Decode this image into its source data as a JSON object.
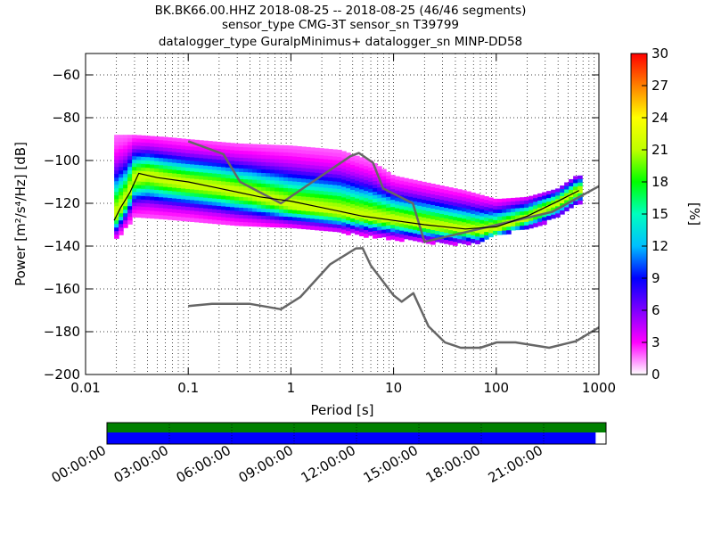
{
  "title": {
    "line1": "BK.BK66.00.HHZ   2018-08-25 -- 2018-08-25  (46/46 segments)",
    "line2": "sensor_type CMG-3T sensor_sn T39799",
    "line3": "datalogger_type GuralpMinimus+ datalogger_sn MINP-DD58"
  },
  "chart_data": [
    {
      "type": "heatmap",
      "name": "probabilistic-psd",
      "xlabel": "Period [s]",
      "ylabel": "Power [m²/s⁴/Hz] [dB]",
      "xscale": "log",
      "xlim": [
        0.01,
        1000
      ],
      "ylim": [
        -200,
        -50
      ],
      "xticks": [
        0.01,
        0.1,
        1,
        10,
        100,
        1000
      ],
      "xtick_labels": [
        "0.01",
        "0.1",
        "1",
        "10",
        "100",
        "1000"
      ],
      "yticks": [
        -200,
        -180,
        -160,
        -140,
        -120,
        -100,
        -80,
        -60
      ],
      "ytick_labels": [
        "−200",
        "−180",
        "−160",
        "−140",
        "−120",
        "−100",
        "−80",
        "−60"
      ],
      "grid": true,
      "colorbar": {
        "label": "[%]",
        "range": [
          0,
          30
        ],
        "ticks": [
          0,
          3,
          6,
          9,
          12,
          15,
          18,
          21,
          24,
          27,
          30
        ],
        "colormap": [
          "#ffffff",
          "#ff00ff",
          "#7f00ff",
          "#0000ff",
          "#00bfff",
          "#00ffbf",
          "#00ff00",
          "#bfff00",
          "#ffff00",
          "#ff8000",
          "#ff0000"
        ]
      },
      "psd_band": {
        "period_min": 0.019,
        "period_max": 640,
        "mean": [
          [
            0.019,
            -127
          ],
          [
            0.025,
            -118
          ],
          [
            0.03,
            -108
          ],
          [
            0.04,
            -107
          ],
          [
            0.06,
            -109
          ],
          [
            0.1,
            -111
          ],
          [
            0.2,
            -113
          ],
          [
            0.4,
            -116
          ],
          [
            0.7,
            -119
          ],
          [
            1,
            -121
          ],
          [
            2,
            -123
          ],
          [
            5,
            -126
          ],
          [
            10,
            -128
          ],
          [
            20,
            -130
          ],
          [
            40,
            -132
          ],
          [
            70,
            -133
          ],
          [
            100,
            -132
          ],
          [
            200,
            -127
          ],
          [
            400,
            -120
          ],
          [
            640,
            -114
          ]
        ],
        "upper_envelope": [
          [
            0.03,
            -88
          ],
          [
            0.06,
            -89
          ],
          [
            0.1,
            -90
          ],
          [
            0.3,
            -92
          ],
          [
            1,
            -93
          ],
          [
            3,
            -95
          ],
          [
            6,
            -100
          ],
          [
            10,
            -107
          ],
          [
            20,
            -110
          ],
          [
            50,
            -114
          ],
          [
            100,
            -118
          ],
          [
            200,
            -117
          ],
          [
            400,
            -113
          ],
          [
            600,
            -107
          ]
        ],
        "lower_envelope": [
          [
            0.019,
            -137
          ],
          [
            0.03,
            -126
          ],
          [
            0.1,
            -127
          ],
          [
            0.3,
            -130
          ],
          [
            1,
            -131
          ],
          [
            3,
            -133
          ],
          [
            10,
            -136
          ],
          [
            30,
            -138
          ],
          [
            70,
            -138
          ],
          [
            100,
            -134
          ],
          [
            200,
            -131
          ],
          [
            400,
            -126
          ],
          [
            640,
            -119
          ]
        ]
      },
      "nhnm": [
        [
          0.1,
          -91
        ],
        [
          0.22,
          -97
        ],
        [
          0.32,
          -110
        ],
        [
          0.8,
          -120
        ],
        [
          3.8,
          -98
        ],
        [
          4.6,
          -96.5
        ],
        [
          6.3,
          -101
        ],
        [
          7.9,
          -113
        ],
        [
          15.4,
          -120
        ],
        [
          20,
          -138
        ],
        [
          350,
          -124
        ],
        [
          1000,
          -112
        ]
      ],
      "nlnm": [
        [
          0.1,
          -168
        ],
        [
          0.17,
          -167
        ],
        [
          0.4,
          -167
        ],
        [
          0.8,
          -169.5
        ],
        [
          1.24,
          -163.7
        ],
        [
          2.4,
          -148.6
        ],
        [
          4.3,
          -141.1
        ],
        [
          5,
          -141
        ],
        [
          6,
          -149
        ],
        [
          10,
          -163
        ],
        [
          12,
          -166
        ],
        [
          15.6,
          -162
        ],
        [
          21.9,
          -177.5
        ],
        [
          31.6,
          -185
        ],
        [
          45,
          -187.5
        ],
        [
          70,
          -187.5
        ],
        [
          101,
          -185
        ],
        [
          154,
          -185
        ],
        [
          328,
          -187.5
        ],
        [
          600,
          -184.4
        ],
        [
          1000,
          -178
        ]
      ],
      "mode": [
        [
          0.019,
          -128
        ],
        [
          0.022,
          -122
        ],
        [
          0.027,
          -115
        ],
        [
          0.033,
          -106
        ],
        [
          0.05,
          -108
        ],
        [
          0.1,
          -110
        ],
        [
          0.2,
          -113
        ],
        [
          0.5,
          -117
        ],
        [
          1,
          -119
        ],
        [
          2,
          -122
        ],
        [
          5,
          -126
        ],
        [
          10,
          -128
        ],
        [
          20,
          -130
        ],
        [
          50,
          -132
        ],
        [
          100,
          -131
        ],
        [
          200,
          -126
        ],
        [
          400,
          -119
        ],
        [
          640,
          -114
        ]
      ]
    },
    {
      "type": "timeline",
      "name": "data-coverage",
      "tick_labels": [
        "00:00:00",
        "03:00:00",
        "06:00:00",
        "09:00:00",
        "12:00:00",
        "15:00:00",
        "18:00:00",
        "21:00:00"
      ],
      "tick_hours": [
        0,
        3,
        6,
        9,
        12,
        15,
        18,
        21
      ],
      "range_hours": [
        0,
        24
      ],
      "rows": [
        {
          "color": "#008000",
          "start": 0,
          "end": 24
        },
        {
          "color": "#0000ff",
          "start": 0,
          "end": 23.5
        }
      ]
    }
  ]
}
